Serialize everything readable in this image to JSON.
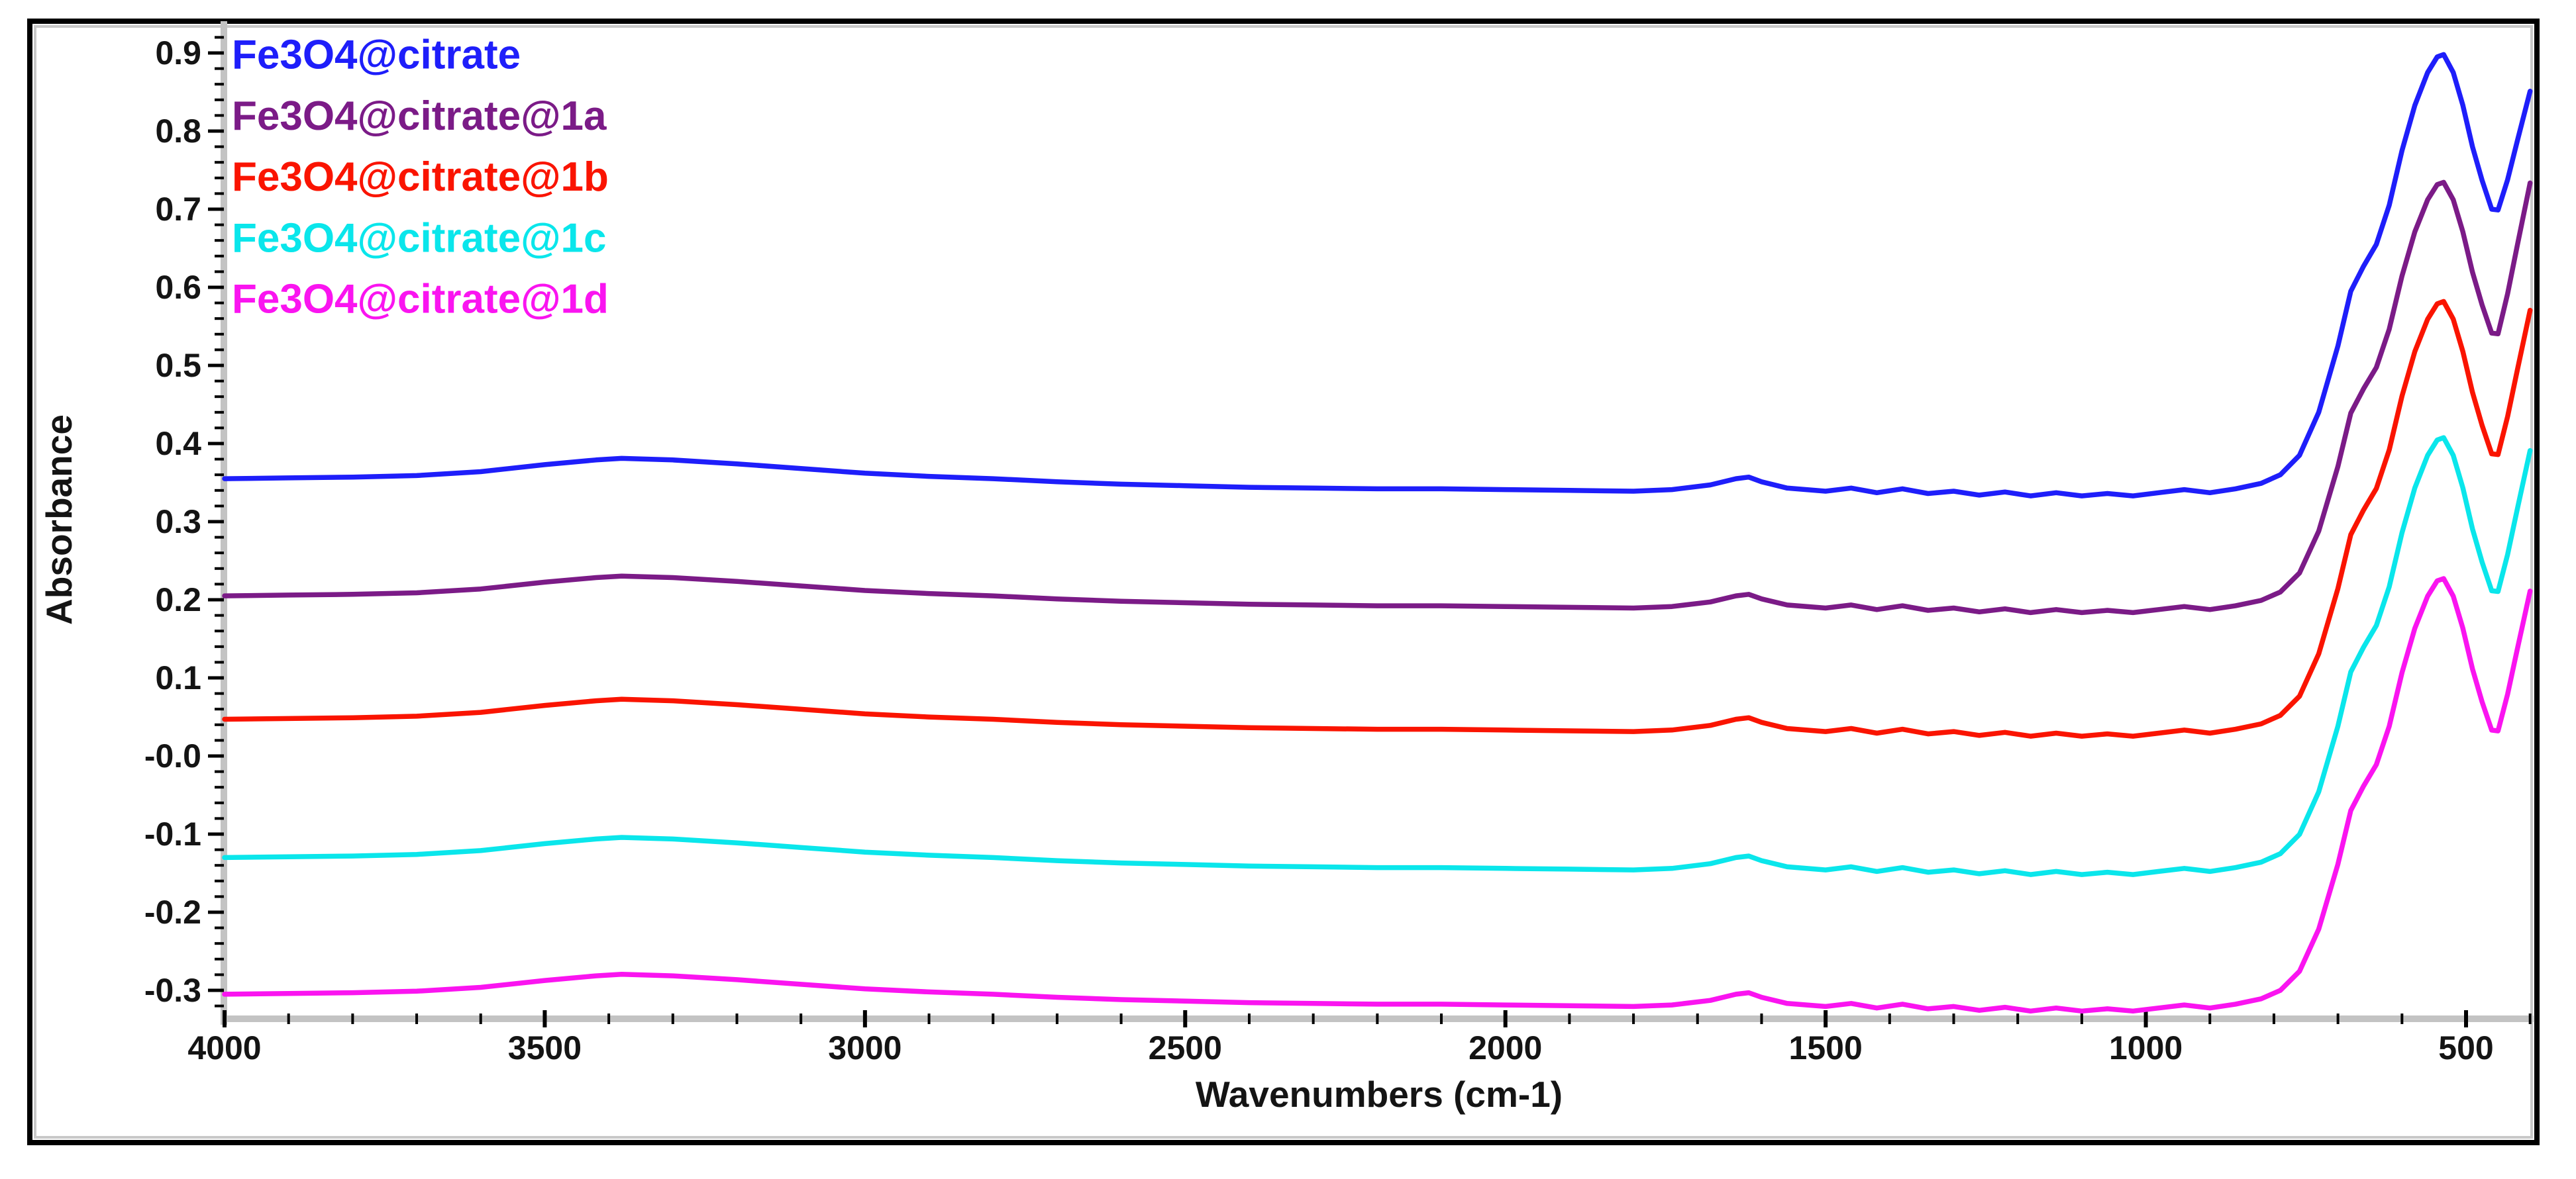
{
  "figure": {
    "description": "FTIR absorbance spectra of magnetite nanoparticle samples, stacked with vertical offsets",
    "background_color": "#ffffff",
    "border_color": "#000000",
    "inner_shadow_color": "#c8c8c8"
  },
  "axes_style": {
    "band_color": "#c3c3c3",
    "tick_color": "#000000",
    "label_color": "#141414"
  },
  "legend": {
    "items": [
      {
        "label": "Fe3O4@citrate",
        "color": "#1E1EFA"
      },
      {
        "label": "Fe3O4@citrate@1a",
        "color": "#7B1B87"
      },
      {
        "label": "Fe3O4@citrate@1b",
        "color": "#FA1400"
      },
      {
        "label": "Fe3O4@citrate@1c",
        "color": "#0AE6EB"
      },
      {
        "label": "Fe3O4@citrate@1d",
        "color": "#FA14F0"
      }
    ]
  },
  "chart_data": {
    "type": "line",
    "title": "",
    "xlabel": "Wavenumbers (cm-1)",
    "ylabel": "Absorbance",
    "grid": false,
    "legend_position": "top-left",
    "x_axis": {
      "max": 4000,
      "min": 395,
      "reversed": true,
      "major_ticks": [
        4000,
        3500,
        3000,
        2500,
        2000,
        1500,
        1000,
        500
      ],
      "major_tick_labels": [
        "4000",
        "3500",
        "3000",
        "2500",
        "2000",
        "1500",
        "1000",
        "500"
      ],
      "minor_tick_step": 100
    },
    "y_axis": {
      "max": 0.94,
      "min": -0.336,
      "major_ticks": [
        0.9,
        0.8,
        0.7,
        0.6,
        0.5,
        0.4,
        0.3,
        0.2,
        0.1,
        0.0,
        -0.1,
        -0.2,
        -0.3
      ],
      "major_tick_labels": [
        "0.9",
        "0.8",
        "0.7",
        "0.6",
        "0.5",
        "0.4",
        "0.3",
        "0.2",
        "0.1",
        "-0.0",
        "-0.1",
        "-0.2",
        "-0.3"
      ],
      "minor_tick_step": 0.02
    },
    "profile_note": "All five spectra share one spectral shape; each series plots absorbance = offset + amp * shape + end_lift ramp below 450 cm-1",
    "profile_x": [
      4000,
      3900,
      3800,
      3700,
      3600,
      3500,
      3420,
      3380,
      3300,
      3200,
      3100,
      3000,
      2900,
      2800,
      2700,
      2600,
      2500,
      2400,
      2300,
      2200,
      2100,
      2000,
      1900,
      1800,
      1740,
      1680,
      1640,
      1620,
      1600,
      1560,
      1500,
      1460,
      1420,
      1380,
      1340,
      1300,
      1260,
      1220,
      1180,
      1140,
      1100,
      1060,
      1020,
      980,
      940,
      900,
      860,
      820,
      790,
      760,
      730,
      700,
      680,
      660,
      640,
      620,
      600,
      580,
      560,
      545,
      535,
      520,
      505,
      490,
      475,
      460,
      450,
      435,
      420,
      410,
      400
    ],
    "profile_shape": [
      0.0,
      0.001,
      0.002,
      0.004,
      0.009,
      0.018,
      0.024,
      0.026,
      0.024,
      0.019,
      0.013,
      0.007,
      0.003,
      0.0,
      -0.004,
      -0.007,
      -0.009,
      -0.011,
      -0.012,
      -0.013,
      -0.013,
      -0.014,
      -0.015,
      -0.016,
      -0.014,
      -0.008,
      0.0,
      0.002,
      -0.004,
      -0.012,
      -0.016,
      -0.012,
      -0.018,
      -0.013,
      -0.019,
      -0.016,
      -0.021,
      -0.017,
      -0.022,
      -0.018,
      -0.022,
      -0.019,
      -0.022,
      -0.018,
      -0.014,
      -0.018,
      -0.013,
      -0.006,
      0.005,
      0.03,
      0.085,
      0.17,
      0.24,
      0.272,
      0.3,
      0.35,
      0.42,
      0.478,
      0.52,
      0.54,
      0.543,
      0.52,
      0.478,
      0.425,
      0.382,
      0.345,
      0.344,
      0.383,
      0.432,
      0.464,
      0.496
    ],
    "series": [
      {
        "name": "Fe3O4@citrate",
        "color": "#1E1EFA",
        "offset": 0.355,
        "amp": 1.0,
        "end_lift": 0.0,
        "key_points": {
          "baseline_4000": 0.355,
          "broad_OH_bump_3400": 0.38,
          "peak_1620": 0.36,
          "FeO_peak": {
            "wavenumber": 540,
            "absorbance": 0.9
          },
          "valley": {
            "wavenumber": 460,
            "absorbance": 0.7
          },
          "end_400": 0.85
        }
      },
      {
        "name": "Fe3O4@citrate@1a",
        "color": "#7B1B87",
        "offset": 0.205,
        "amp": 0.975,
        "end_lift": 0.045,
        "key_points": {
          "baseline_4000": 0.205,
          "broad_OH_bump_3400": 0.23,
          "peak_1620": 0.21,
          "FeO_peak": {
            "wavenumber": 540,
            "absorbance": 0.735
          },
          "valley": {
            "wavenumber": 460,
            "absorbance": 0.54
          },
          "end_400": 0.73
        }
      },
      {
        "name": "Fe3O4@citrate@1b",
        "color": "#FA1400",
        "offset": 0.047,
        "amp": 0.985,
        "end_lift": 0.035,
        "key_points": {
          "baseline_4000": 0.047,
          "broad_OH_bump_3400": 0.073,
          "peak_1620": 0.05,
          "FeO_peak": {
            "wavenumber": 540,
            "absorbance": 0.582
          },
          "valley": {
            "wavenumber": 460,
            "absorbance": 0.39
          },
          "end_400": 0.57
        }
      },
      {
        "name": "Fe3O4@citrate@1c",
        "color": "#0AE6EB",
        "offset": -0.13,
        "amp": 0.99,
        "end_lift": 0.03,
        "key_points": {
          "baseline_4000": -0.13,
          "broad_OH_bump_3400": -0.105,
          "peak_1620": -0.125,
          "FeO_peak": {
            "wavenumber": 540,
            "absorbance": 0.41
          },
          "valley": {
            "wavenumber": 460,
            "absorbance": 0.21
          },
          "end_400": 0.39
        }
      },
      {
        "name": "Fe3O4@citrate@1d",
        "color": "#FA14F0",
        "offset": -0.305,
        "amp": 0.98,
        "end_lift": 0.03,
        "key_points": {
          "baseline_4000": -0.305,
          "broad_OH_bump_3400": -0.28,
          "peak_1620": -0.3,
          "FeO_peak": {
            "wavenumber": 540,
            "absorbance": 0.23
          },
          "valley": {
            "wavenumber": 460,
            "absorbance": 0.03
          },
          "end_400": 0.21
        }
      }
    ]
  }
}
